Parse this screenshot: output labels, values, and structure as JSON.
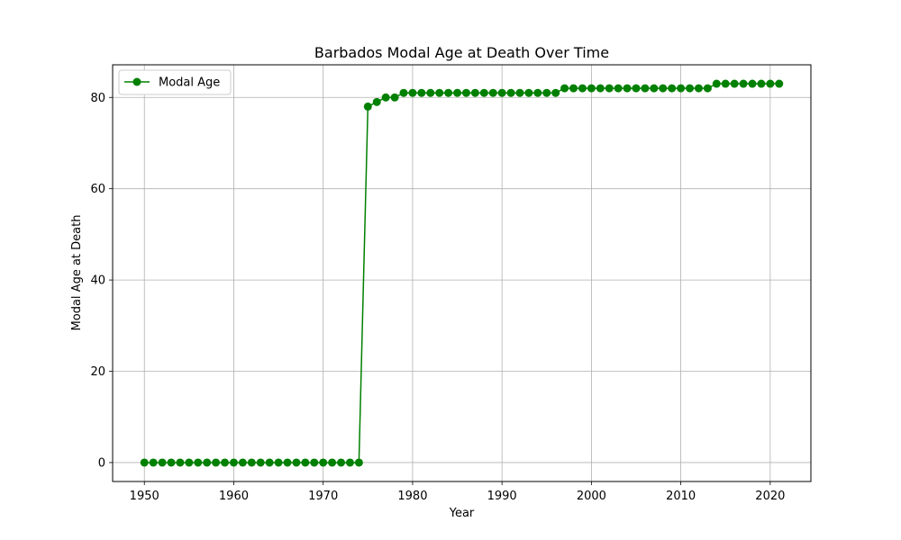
{
  "chart_data": {
    "type": "line",
    "title": "Barbados Modal Age at Death Over Time",
    "xlabel": "Year",
    "ylabel": "Modal Age at Death",
    "xlim": [
      1946.45,
      2024.55
    ],
    "ylim": [
      -4.15,
      87.15
    ],
    "xticks": [
      1950,
      1960,
      1970,
      1980,
      1990,
      2000,
      2010,
      2020
    ],
    "yticks": [
      0,
      20,
      40,
      60,
      80
    ],
    "grid": true,
    "legend_position": "top-left",
    "series": [
      {
        "name": "Modal Age",
        "color": "#008000",
        "marker": "circle",
        "x": [
          1950,
          1951,
          1952,
          1953,
          1954,
          1955,
          1956,
          1957,
          1958,
          1959,
          1960,
          1961,
          1962,
          1963,
          1964,
          1965,
          1966,
          1967,
          1968,
          1969,
          1970,
          1971,
          1972,
          1973,
          1974,
          1975,
          1976,
          1977,
          1978,
          1979,
          1980,
          1981,
          1982,
          1983,
          1984,
          1985,
          1986,
          1987,
          1988,
          1989,
          1990,
          1991,
          1992,
          1993,
          1994,
          1995,
          1996,
          1997,
          1998,
          1999,
          2000,
          2001,
          2002,
          2003,
          2004,
          2005,
          2006,
          2007,
          2008,
          2009,
          2010,
          2011,
          2012,
          2013,
          2014,
          2015,
          2016,
          2017,
          2018,
          2019,
          2020,
          2021
        ],
        "y": [
          0,
          0,
          0,
          0,
          0,
          0,
          0,
          0,
          0,
          0,
          0,
          0,
          0,
          0,
          0,
          0,
          0,
          0,
          0,
          0,
          0,
          0,
          0,
          0,
          0,
          78,
          79,
          80,
          80,
          81,
          81,
          81,
          81,
          81,
          81,
          81,
          81,
          81,
          81,
          81,
          81,
          81,
          81,
          81,
          81,
          81,
          81,
          82,
          82,
          82,
          82,
          82,
          82,
          82,
          82,
          82,
          82,
          82,
          82,
          82,
          82,
          82,
          82,
          82,
          83,
          83,
          83,
          83,
          83,
          83,
          83,
          83
        ]
      }
    ]
  }
}
